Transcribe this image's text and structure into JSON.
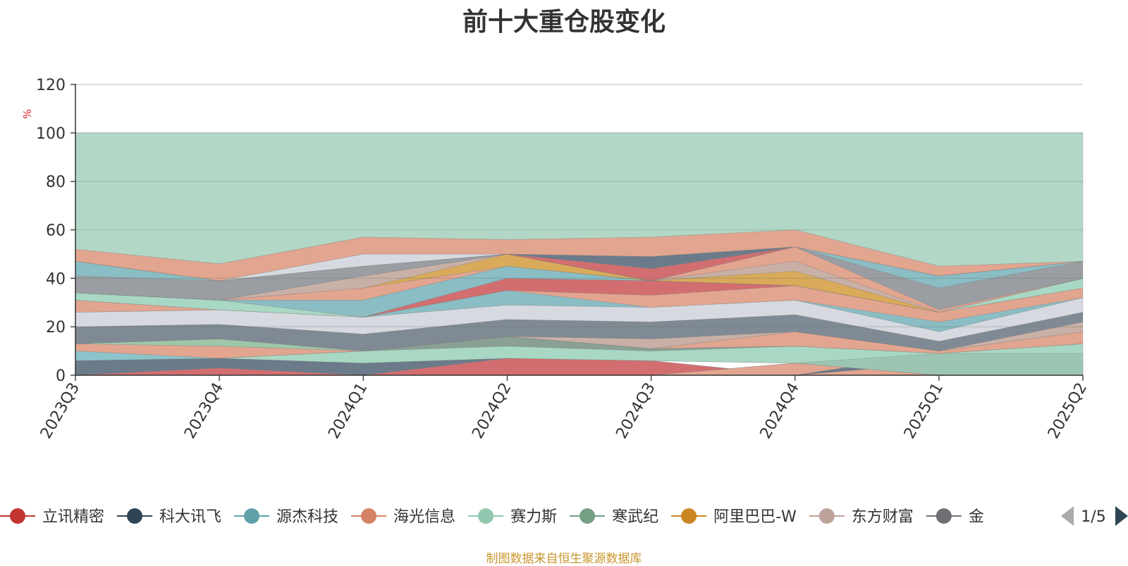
{
  "chart_data": {
    "type": "area",
    "title": "前十大重仓股变化",
    "ylabel": "%",
    "ylim": [
      0,
      120
    ],
    "yticks": [
      0,
      20,
      40,
      60,
      80,
      100,
      120
    ],
    "categories": [
      "2023Q3",
      "2023Q4",
      "2024Q1",
      "2024Q2",
      "2024Q3",
      "2024Q4",
      "2025Q1",
      "2025Q2"
    ],
    "bands": [
      {
        "color": "#d36e70",
        "y0": [
          0,
          0,
          0,
          0,
          0,
          0,
          0,
          0
        ],
        "y1": [
          0,
          3,
          0,
          7,
          6,
          0,
          0,
          0
        ]
      },
      {
        "color": "#6b7b8a",
        "y0": [
          0,
          3,
          0,
          7,
          6,
          0,
          0,
          0
        ],
        "y1": [
          6,
          7,
          5,
          7,
          6,
          0,
          0,
          0
        ]
      },
      {
        "color": "#e2a58f",
        "y0": [
          0,
          0,
          0,
          0,
          0,
          0,
          0,
          0
        ],
        "y1": [
          0,
          0,
          0,
          0,
          0,
          5,
          0,
          0
        ]
      },
      {
        "color": "#d9aa5a",
        "y0": [
          0,
          0,
          0,
          0,
          0,
          5,
          0,
          0
        ],
        "y1": [
          0,
          0,
          0,
          0,
          0,
          5,
          5,
          5
        ]
      },
      {
        "color": "#6b7b8a",
        "y0": [
          0,
          0,
          0,
          0,
          0,
          0,
          5,
          5
        ],
        "y1": [
          0,
          0,
          0,
          0,
          0,
          0,
          9,
          9
        ]
      },
      {
        "color": "#9cc6b3",
        "y0": [
          6,
          7,
          5,
          7,
          6,
          5,
          0,
          0
        ],
        "y1": [
          6,
          7,
          5,
          7,
          10,
          12,
          9,
          9
        ]
      },
      {
        "color": "#a8d8c3",
        "y0": [
          6,
          7,
          5,
          7,
          6,
          5,
          9,
          9
        ],
        "y1": [
          6,
          7,
          10,
          12,
          10,
          12,
          9,
          13
        ]
      },
      {
        "color": "#8aa095",
        "y0": [
          6,
          7,
          10,
          12,
          10,
          12,
          9,
          13
        ],
        "y1": [
          6,
          7,
          10,
          16,
          11,
          12,
          9,
          13
        ]
      },
      {
        "color": "#8cc4cc",
        "y0": [
          6,
          7,
          10,
          16,
          11,
          12,
          9,
          13
        ],
        "y1": [
          10,
          7,
          10,
          16,
          11,
          12,
          9,
          13
        ]
      },
      {
        "color": "#e2a58f",
        "y0": [
          10,
          7,
          10,
          16,
          11,
          12,
          9,
          13
        ],
        "y1": [
          13,
          12,
          10,
          16,
          11,
          18,
          10,
          18
        ]
      },
      {
        "color": "#9ec7aa",
        "y0": [
          13,
          12,
          10,
          16,
          11,
          18,
          10,
          18
        ],
        "y1": [
          13,
          15,
          10,
          16,
          11,
          18,
          10,
          18
        ]
      },
      {
        "color": "#c9b0a6",
        "y0": [
          13,
          15,
          10,
          16,
          11,
          18,
          10,
          18
        ],
        "y1": [
          13,
          15,
          10,
          16,
          15,
          18,
          10,
          22
        ]
      },
      {
        "color": "#808a94",
        "y0": [
          13,
          15,
          10,
          16,
          15,
          18,
          10,
          22
        ],
        "y1": [
          20,
          21,
          17,
          23,
          22,
          25,
          14,
          26
        ]
      },
      {
        "color": "#d6dae0",
        "y0": [
          20,
          21,
          17,
          23,
          22,
          25,
          14,
          26
        ],
        "y1": [
          26,
          27,
          24,
          29,
          28,
          31,
          18,
          32
        ]
      },
      {
        "color": "#8abdc4",
        "y0": [
          26,
          27,
          24,
          29,
          28,
          31,
          18,
          32
        ],
        "y1": [
          26,
          27,
          24,
          35,
          28,
          31,
          22,
          32
        ]
      },
      {
        "color": "#e2a58f",
        "y0": [
          26,
          27,
          24,
          35,
          28,
          31,
          22,
          32
        ],
        "y1": [
          31,
          27,
          24,
          35,
          33,
          37,
          26,
          36
        ]
      },
      {
        "color": "#d36e70",
        "y0": [
          31,
          27,
          24,
          35,
          33,
          37,
          26,
          36
        ],
        "y1": [
          31,
          27,
          24,
          40,
          39,
          37,
          26,
          36
        ]
      },
      {
        "color": "#a8d8c3",
        "y0": [
          31,
          27,
          24,
          40,
          39,
          37,
          26,
          36
        ],
        "y1": [
          34,
          31,
          24,
          40,
          39,
          37,
          26,
          40
        ]
      },
      {
        "color": "#8abdc4",
        "y0": [
          34,
          31,
          24,
          40,
          39,
          37,
          26,
          40
        ],
        "y1": [
          34,
          31,
          31,
          45,
          39,
          37,
          26,
          40
        ]
      },
      {
        "color": "#e2a58f",
        "y0": [
          34,
          31,
          31,
          45,
          39,
          37,
          26,
          40
        ],
        "y1": [
          34,
          31,
          36,
          45,
          39,
          37,
          26,
          40
        ]
      },
      {
        "color": "#d9aa5a",
        "y0": [
          34,
          31,
          36,
          45,
          39,
          37,
          26,
          40
        ],
        "y1": [
          34,
          31,
          36,
          50,
          39,
          43,
          26,
          40
        ]
      },
      {
        "color": "#c9b0a6",
        "y0": [
          34,
          31,
          36,
          50,
          39,
          43,
          26,
          40
        ],
        "y1": [
          34,
          31,
          41,
          50,
          39,
          47,
          26,
          40
        ]
      },
      {
        "color": "#e2a58f",
        "y0": [
          34,
          31,
          41,
          50,
          39,
          47,
          26,
          40
        ],
        "y1": [
          34,
          31,
          41,
          50,
          39,
          53,
          27,
          40
        ]
      },
      {
        "color": "#9a9ea3",
        "y0": [
          34,
          31,
          41,
          50,
          39,
          53,
          27,
          40
        ],
        "y1": [
          41,
          39,
          45,
          50,
          39,
          53,
          36,
          47
        ]
      },
      {
        "color": "#8abdc4",
        "y0": [
          41,
          39,
          45,
          50,
          39,
          53,
          36,
          47
        ],
        "y1": [
          47,
          39,
          45,
          50,
          39,
          53,
          41,
          47
        ]
      },
      {
        "color": "#d36e70",
        "y0": [
          47,
          39,
          45,
          50,
          39,
          53,
          41,
          47
        ],
        "y1": [
          47,
          39,
          45,
          50,
          44,
          53,
          41,
          47
        ]
      },
      {
        "color": "#6b7b8a",
        "y0": [
          47,
          39,
          45,
          50,
          44,
          53,
          41,
          47
        ],
        "y1": [
          47,
          39,
          45,
          50,
          49,
          53,
          41,
          47
        ]
      },
      {
        "color": "#d6dae0",
        "y0": [
          47,
          39,
          45,
          50,
          49,
          53,
          41,
          47
        ],
        "y1": [
          47,
          39,
          50,
          50,
          49,
          53,
          41,
          47
        ]
      },
      {
        "color": "#e2a58f",
        "y0": [
          47,
          39,
          50,
          50,
          49,
          53,
          41,
          47
        ],
        "y1": [
          52,
          46,
          57,
          56,
          57,
          60,
          45,
          47
        ]
      },
      {
        "color": "#b3d7c6",
        "y0": [
          52,
          46,
          57,
          56,
          57,
          60,
          45,
          47
        ],
        "y1": [
          100,
          100,
          100,
          100,
          100,
          100,
          100,
          100
        ]
      }
    ],
    "legend": {
      "items": [
        {
          "name": "立讯精密",
          "color": "#c23531"
        },
        {
          "name": "科大讯飞",
          "color": "#2f4554"
        },
        {
          "name": "源杰科技",
          "color": "#61a0a8"
        },
        {
          "name": "海光信息",
          "color": "#d48265"
        },
        {
          "name": "赛力斯",
          "color": "#91c7ae"
        },
        {
          "name": "寒武纪",
          "color": "#749f83"
        },
        {
          "name": "阿里巴巴-W",
          "color": "#ca8622"
        },
        {
          "name": "东方财富",
          "color": "#bda29a"
        },
        {
          "name": "金",
          "color": "#6e7074"
        }
      ],
      "page": "1/5"
    }
  },
  "footer": {
    "source": "制图数据来自恒生聚源数据库"
  }
}
